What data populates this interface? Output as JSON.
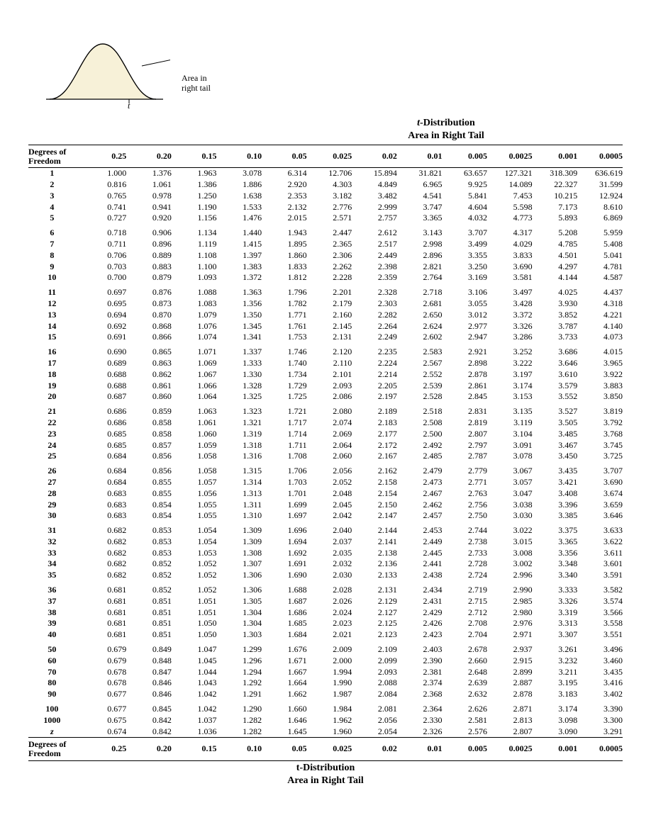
{
  "diagram": {
    "label_line1": "Area in",
    "label_line2": "right tail",
    "t": "t"
  },
  "title_prefix": "t",
  "title_rest": "-Distribution",
  "subtitle": "Area in Right Tail",
  "df_header": "Degrees of\nFreedom",
  "alphas": [
    "0.25",
    "0.20",
    "0.15",
    "0.10",
    "0.05",
    "0.025",
    "0.02",
    "0.01",
    "0.005",
    "0.0025",
    "0.001",
    "0.0005"
  ],
  "groups": [
    [
      {
        "df": "1",
        "v": [
          "1.000",
          "1.376",
          "1.963",
          "3.078",
          "6.314",
          "12.706",
          "15.894",
          "31.821",
          "63.657",
          "127.321",
          "318.309",
          "636.619"
        ]
      },
      {
        "df": "2",
        "v": [
          "0.816",
          "1.061",
          "1.386",
          "1.886",
          "2.920",
          "4.303",
          "4.849",
          "6.965",
          "9.925",
          "14.089",
          "22.327",
          "31.599"
        ]
      },
      {
        "df": "3",
        "v": [
          "0.765",
          "0.978",
          "1.250",
          "1.638",
          "2.353",
          "3.182",
          "3.482",
          "4.541",
          "5.841",
          "7.453",
          "10.215",
          "12.924"
        ]
      },
      {
        "df": "4",
        "v": [
          "0.741",
          "0.941",
          "1.190",
          "1.533",
          "2.132",
          "2.776",
          "2.999",
          "3.747",
          "4.604",
          "5.598",
          "7.173",
          "8.610"
        ]
      },
      {
        "df": "5",
        "v": [
          "0.727",
          "0.920",
          "1.156",
          "1.476",
          "2.015",
          "2.571",
          "2.757",
          "3.365",
          "4.032",
          "4.773",
          "5.893",
          "6.869"
        ]
      }
    ],
    [
      {
        "df": "6",
        "v": [
          "0.718",
          "0.906",
          "1.134",
          "1.440",
          "1.943",
          "2.447",
          "2.612",
          "3.143",
          "3.707",
          "4.317",
          "5.208",
          "5.959"
        ]
      },
      {
        "df": "7",
        "v": [
          "0.711",
          "0.896",
          "1.119",
          "1.415",
          "1.895",
          "2.365",
          "2.517",
          "2.998",
          "3.499",
          "4.029",
          "4.785",
          "5.408"
        ]
      },
      {
        "df": "8",
        "v": [
          "0.706",
          "0.889",
          "1.108",
          "1.397",
          "1.860",
          "2.306",
          "2.449",
          "2.896",
          "3.355",
          "3.833",
          "4.501",
          "5.041"
        ]
      },
      {
        "df": "9",
        "v": [
          "0.703",
          "0.883",
          "1.100",
          "1.383",
          "1.833",
          "2.262",
          "2.398",
          "2.821",
          "3.250",
          "3.690",
          "4.297",
          "4.781"
        ]
      },
      {
        "df": "10",
        "v": [
          "0.700",
          "0.879",
          "1.093",
          "1.372",
          "1.812",
          "2.228",
          "2.359",
          "2.764",
          "3.169",
          "3.581",
          "4.144",
          "4.587"
        ]
      }
    ],
    [
      {
        "df": "11",
        "v": [
          "0.697",
          "0.876",
          "1.088",
          "1.363",
          "1.796",
          "2.201",
          "2.328",
          "2.718",
          "3.106",
          "3.497",
          "4.025",
          "4.437"
        ]
      },
      {
        "df": "12",
        "v": [
          "0.695",
          "0.873",
          "1.083",
          "1.356",
          "1.782",
          "2.179",
          "2.303",
          "2.681",
          "3.055",
          "3.428",
          "3.930",
          "4.318"
        ]
      },
      {
        "df": "13",
        "v": [
          "0.694",
          "0.870",
          "1.079",
          "1.350",
          "1.771",
          "2.160",
          "2.282",
          "2.650",
          "3.012",
          "3.372",
          "3.852",
          "4.221"
        ]
      },
      {
        "df": "14",
        "v": [
          "0.692",
          "0.868",
          "1.076",
          "1.345",
          "1.761",
          "2.145",
          "2.264",
          "2.624",
          "2.977",
          "3.326",
          "3.787",
          "4.140"
        ]
      },
      {
        "df": "15",
        "v": [
          "0.691",
          "0.866",
          "1.074",
          "1.341",
          "1.753",
          "2.131",
          "2.249",
          "2.602",
          "2.947",
          "3.286",
          "3.733",
          "4.073"
        ]
      }
    ],
    [
      {
        "df": "16",
        "v": [
          "0.690",
          "0.865",
          "1.071",
          "1.337",
          "1.746",
          "2.120",
          "2.235",
          "2.583",
          "2.921",
          "3.252",
          "3.686",
          "4.015"
        ]
      },
      {
        "df": "17",
        "v": [
          "0.689",
          "0.863",
          "1.069",
          "1.333",
          "1.740",
          "2.110",
          "2.224",
          "2.567",
          "2.898",
          "3.222",
          "3.646",
          "3.965"
        ]
      },
      {
        "df": "18",
        "v": [
          "0.688",
          "0.862",
          "1.067",
          "1.330",
          "1.734",
          "2.101",
          "2.214",
          "2.552",
          "2.878",
          "3.197",
          "3.610",
          "3.922"
        ]
      },
      {
        "df": "19",
        "v": [
          "0.688",
          "0.861",
          "1.066",
          "1.328",
          "1.729",
          "2.093",
          "2.205",
          "2.539",
          "2.861",
          "3.174",
          "3.579",
          "3.883"
        ]
      },
      {
        "df": "20",
        "v": [
          "0.687",
          "0.860",
          "1.064",
          "1.325",
          "1.725",
          "2.086",
          "2.197",
          "2.528",
          "2.845",
          "3.153",
          "3.552",
          "3.850"
        ]
      }
    ],
    [
      {
        "df": "21",
        "v": [
          "0.686",
          "0.859",
          "1.063",
          "1.323",
          "1.721",
          "2.080",
          "2.189",
          "2.518",
          "2.831",
          "3.135",
          "3.527",
          "3.819"
        ]
      },
      {
        "df": "22",
        "v": [
          "0.686",
          "0.858",
          "1.061",
          "1.321",
          "1.717",
          "2.074",
          "2.183",
          "2.508",
          "2.819",
          "3.119",
          "3.505",
          "3.792"
        ]
      },
      {
        "df": "23",
        "v": [
          "0.685",
          "0.858",
          "1.060",
          "1.319",
          "1.714",
          "2.069",
          "2.177",
          "2.500",
          "2.807",
          "3.104",
          "3.485",
          "3.768"
        ]
      },
      {
        "df": "24",
        "v": [
          "0.685",
          "0.857",
          "1.059",
          "1.318",
          "1.711",
          "2.064",
          "2.172",
          "2.492",
          "2.797",
          "3.091",
          "3.467",
          "3.745"
        ]
      },
      {
        "df": "25",
        "v": [
          "0.684",
          "0.856",
          "1.058",
          "1.316",
          "1.708",
          "2.060",
          "2.167",
          "2.485",
          "2.787",
          "3.078",
          "3.450",
          "3.725"
        ]
      }
    ],
    [
      {
        "df": "26",
        "v": [
          "0.684",
          "0.856",
          "1.058",
          "1.315",
          "1.706",
          "2.056",
          "2.162",
          "2.479",
          "2.779",
          "3.067",
          "3.435",
          "3.707"
        ]
      },
      {
        "df": "27",
        "v": [
          "0.684",
          "0.855",
          "1.057",
          "1.314",
          "1.703",
          "2.052",
          "2.158",
          "2.473",
          "2.771",
          "3.057",
          "3.421",
          "3.690"
        ]
      },
      {
        "df": "28",
        "v": [
          "0.683",
          "0.855",
          "1.056",
          "1.313",
          "1.701",
          "2.048",
          "2.154",
          "2.467",
          "2.763",
          "3.047",
          "3.408",
          "3.674"
        ]
      },
      {
        "df": "29",
        "v": [
          "0.683",
          "0.854",
          "1.055",
          "1.311",
          "1.699",
          "2.045",
          "2.150",
          "2.462",
          "2.756",
          "3.038",
          "3.396",
          "3.659"
        ]
      },
      {
        "df": "30",
        "v": [
          "0.683",
          "0.854",
          "1.055",
          "1.310",
          "1.697",
          "2.042",
          "2.147",
          "2.457",
          "2.750",
          "3.030",
          "3.385",
          "3.646"
        ]
      }
    ],
    [
      {
        "df": "31",
        "v": [
          "0.682",
          "0.853",
          "1.054",
          "1.309",
          "1.696",
          "2.040",
          "2.144",
          "2.453",
          "2.744",
          "3.022",
          "3.375",
          "3.633"
        ]
      },
      {
        "df": "32",
        "v": [
          "0.682",
          "0.853",
          "1.054",
          "1.309",
          "1.694",
          "2.037",
          "2.141",
          "2.449",
          "2.738",
          "3.015",
          "3.365",
          "3.622"
        ]
      },
      {
        "df": "33",
        "v": [
          "0.682",
          "0.853",
          "1.053",
          "1.308",
          "1.692",
          "2.035",
          "2.138",
          "2.445",
          "2.733",
          "3.008",
          "3.356",
          "3.611"
        ]
      },
      {
        "df": "34",
        "v": [
          "0.682",
          "0.852",
          "1.052",
          "1.307",
          "1.691",
          "2.032",
          "2.136",
          "2.441",
          "2.728",
          "3.002",
          "3.348",
          "3.601"
        ]
      },
      {
        "df": "35",
        "v": [
          "0.682",
          "0.852",
          "1.052",
          "1.306",
          "1.690",
          "2.030",
          "2.133",
          "2.438",
          "2.724",
          "2.996",
          "3.340",
          "3.591"
        ]
      }
    ],
    [
      {
        "df": "36",
        "v": [
          "0.681",
          "0.852",
          "1.052",
          "1.306",
          "1.688",
          "2.028",
          "2.131",
          "2.434",
          "2.719",
          "2.990",
          "3.333",
          "3.582"
        ]
      },
      {
        "df": "37",
        "v": [
          "0.681",
          "0.851",
          "1.051",
          "1.305",
          "1.687",
          "2.026",
          "2.129",
          "2.431",
          "2.715",
          "2.985",
          "3.326",
          "3.574"
        ]
      },
      {
        "df": "38",
        "v": [
          "0.681",
          "0.851",
          "1.051",
          "1.304",
          "1.686",
          "2.024",
          "2.127",
          "2.429",
          "2.712",
          "2.980",
          "3.319",
          "3.566"
        ]
      },
      {
        "df": "39",
        "v": [
          "0.681",
          "0.851",
          "1.050",
          "1.304",
          "1.685",
          "2.023",
          "2.125",
          "2.426",
          "2.708",
          "2.976",
          "3.313",
          "3.558"
        ]
      },
      {
        "df": "40",
        "v": [
          "0.681",
          "0.851",
          "1.050",
          "1.303",
          "1.684",
          "2.021",
          "2.123",
          "2.423",
          "2.704",
          "2.971",
          "3.307",
          "3.551"
        ]
      }
    ],
    [
      {
        "df": "50",
        "v": [
          "0.679",
          "0.849",
          "1.047",
          "1.299",
          "1.676",
          "2.009",
          "2.109",
          "2.403",
          "2.678",
          "2.937",
          "3.261",
          "3.496"
        ]
      },
      {
        "df": "60",
        "v": [
          "0.679",
          "0.848",
          "1.045",
          "1.296",
          "1.671",
          "2.000",
          "2.099",
          "2.390",
          "2.660",
          "2.915",
          "3.232",
          "3.460"
        ]
      },
      {
        "df": "70",
        "v": [
          "0.678",
          "0.847",
          "1.044",
          "1.294",
          "1.667",
          "1.994",
          "2.093",
          "2.381",
          "2.648",
          "2.899",
          "3.211",
          "3.435"
        ]
      },
      {
        "df": "80",
        "v": [
          "0.678",
          "0.846",
          "1.043",
          "1.292",
          "1.664",
          "1.990",
          "2.088",
          "2.374",
          "2.639",
          "2.887",
          "3.195",
          "3.416"
        ]
      },
      {
        "df": "90",
        "v": [
          "0.677",
          "0.846",
          "1.042",
          "1.291",
          "1.662",
          "1.987",
          "2.084",
          "2.368",
          "2.632",
          "2.878",
          "3.183",
          "3.402"
        ]
      }
    ],
    [
      {
        "df": "100",
        "v": [
          "0.677",
          "0.845",
          "1.042",
          "1.290",
          "1.660",
          "1.984",
          "2.081",
          "2.364",
          "2.626",
          "2.871",
          "3.174",
          "3.390"
        ]
      },
      {
        "df": "1000",
        "v": [
          "0.675",
          "0.842",
          "1.037",
          "1.282",
          "1.646",
          "1.962",
          "2.056",
          "2.330",
          "2.581",
          "2.813",
          "3.098",
          "3.300"
        ]
      },
      {
        "df": "z",
        "italic": true,
        "v": [
          "0.674",
          "0.842",
          "1.036",
          "1.282",
          "1.645",
          "1.960",
          "2.054",
          "2.326",
          "2.576",
          "2.807",
          "3.090",
          "3.291"
        ]
      }
    ]
  ]
}
